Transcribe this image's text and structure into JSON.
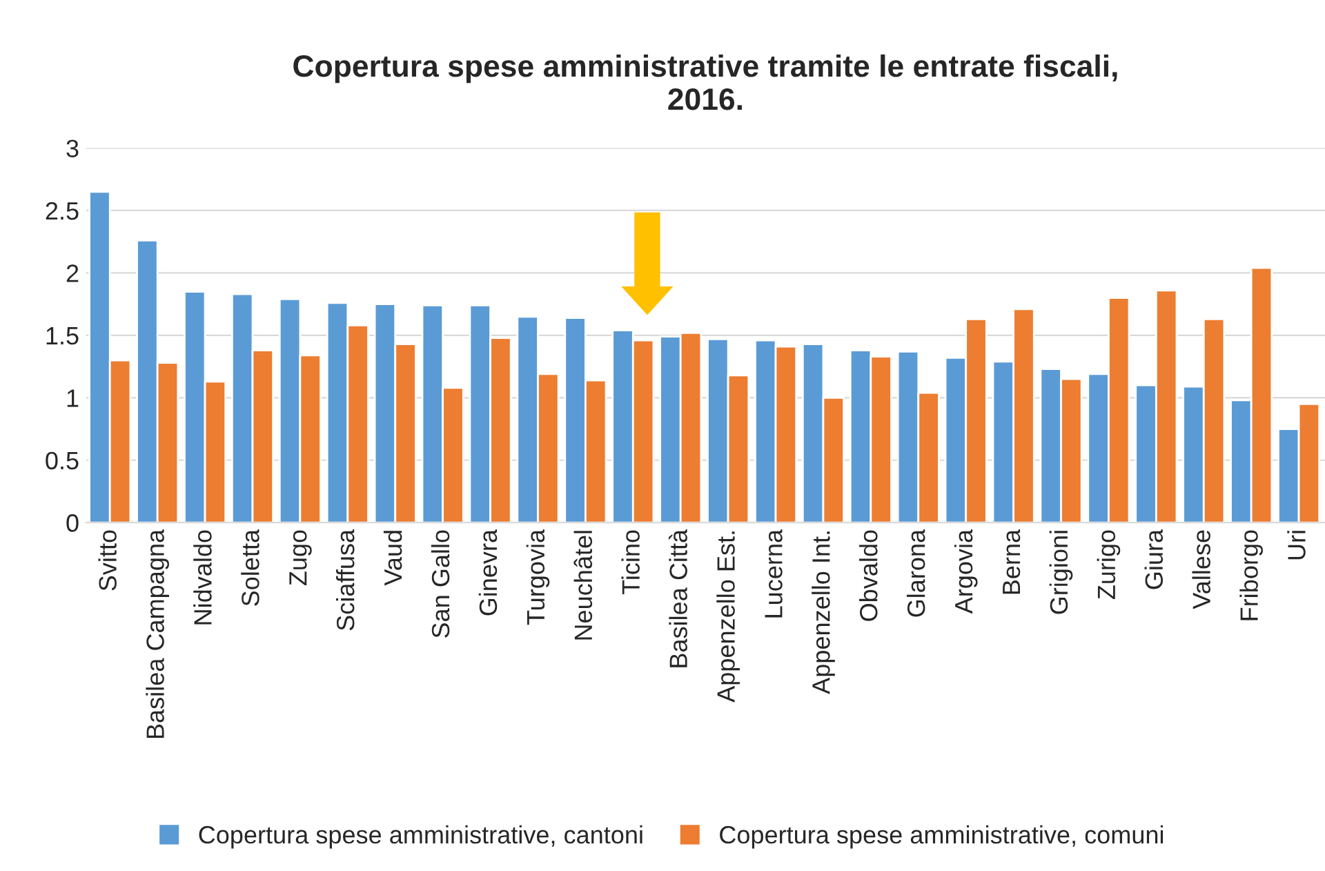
{
  "chart_data": {
    "type": "bar",
    "title": "Copertura spese amministrative tramite le entrate fiscali,\n2016.",
    "categories": [
      "Svitto",
      "Basilea Campagna",
      "Nidvaldo",
      "Soletta",
      "Zugo",
      "Sciaffusa",
      "Vaud",
      "San Gallo",
      "Ginevra",
      "Turgovia",
      "Neuchâtel",
      "Ticino",
      "Basilea Città",
      "Appenzello Est.",
      "Lucerna",
      "Appenzello Int.",
      "Obvaldo",
      "Glarona",
      "Argovia",
      "Berna",
      "Grigioni",
      "Zurigo",
      "Giura",
      "Vallese",
      "Friborgo",
      "Uri"
    ],
    "series": [
      {
        "name": "Copertura spese amministrative, cantoni",
        "color": "#5b9bd5",
        "values": [
          2.65,
          2.26,
          1.85,
          1.83,
          1.79,
          1.76,
          1.75,
          1.74,
          1.74,
          1.65,
          1.64,
          1.54,
          1.49,
          1.47,
          1.46,
          1.43,
          1.38,
          1.37,
          1.32,
          1.29,
          1.23,
          1.19,
          1.1,
          1.09,
          0.98,
          0.75
        ]
      },
      {
        "name": "Copertura spese amministrative, comuni",
        "color": "#ed7d31",
        "values": [
          1.3,
          1.28,
          1.13,
          1.38,
          1.34,
          1.58,
          1.43,
          1.08,
          1.48,
          1.19,
          1.14,
          1.46,
          1.52,
          1.18,
          1.41,
          1.0,
          1.33,
          1.04,
          1.63,
          1.71,
          1.15,
          1.8,
          1.86,
          1.63,
          2.04,
          0.95
        ]
      }
    ],
    "ylim": [
      0,
      3
    ],
    "yticks": [
      0,
      0.5,
      1,
      1.5,
      2,
      2.5,
      3
    ],
    "grid": "y",
    "legend": "bottom"
  }
}
